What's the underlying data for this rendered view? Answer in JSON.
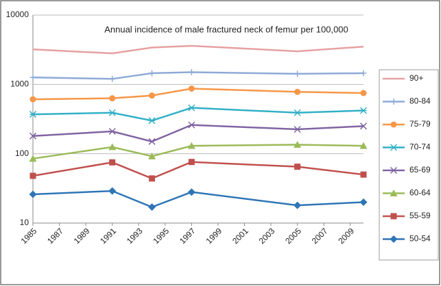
{
  "chart_data": {
    "type": "line",
    "title": "Annual incidence of male fractured neck of femur per 100,000",
    "x": [
      1985,
      1991,
      1994,
      1997,
      2005,
      2010
    ],
    "xlim": [
      1985,
      2010
    ],
    "xticks": [
      1985,
      1987,
      1989,
      1991,
      1993,
      1995,
      1997,
      1999,
      2001,
      2003,
      2005,
      2007,
      2009
    ],
    "ylim": [
      10,
      10000
    ],
    "yticks": [
      10,
      100,
      1000,
      10000
    ],
    "log_y": true,
    "grid": true,
    "legend": "right",
    "series": [
      {
        "name": "90+",
        "color": "#e6a0a0",
        "marker": "none",
        "values": [
          3200,
          2800,
          3400,
          3600,
          3000,
          3500
        ]
      },
      {
        "name": "80-84",
        "color": "#8eaad6",
        "marker": "plus",
        "values": [
          1260,
          1200,
          1450,
          1500,
          1420,
          1450
        ]
      },
      {
        "name": "75-79",
        "color": "#f79646",
        "marker": "circle",
        "values": [
          610,
          630,
          690,
          870,
          780,
          750
        ]
      },
      {
        "name": "70-74",
        "color": "#31b0c6",
        "marker": "star",
        "values": [
          370,
          390,
          300,
          460,
          390,
          420
        ]
      },
      {
        "name": "65-69",
        "color": "#8064a2",
        "marker": "cross",
        "values": [
          180,
          210,
          150,
          260,
          225,
          250
        ]
      },
      {
        "name": "60-64",
        "color": "#9bbb59",
        "marker": "triangle",
        "values": [
          85,
          125,
          92,
          130,
          135,
          130
        ]
      },
      {
        "name": "55-59",
        "color": "#c0504d",
        "marker": "square",
        "values": [
          48,
          75,
          44,
          76,
          65,
          50
        ]
      },
      {
        "name": "50-54",
        "color": "#2e75b6",
        "marker": "diamond",
        "values": [
          26,
          29,
          17,
          28,
          18,
          20
        ]
      }
    ]
  }
}
